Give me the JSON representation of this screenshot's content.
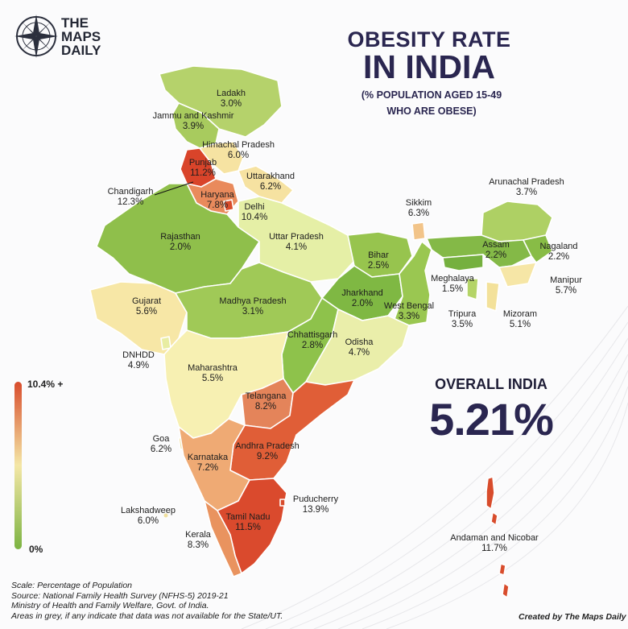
{
  "brand": {
    "line1": "THE",
    "line2": "MAPS",
    "line3": "DAILY"
  },
  "title": {
    "line1": "OBESITY RATE",
    "line2": "IN INDIA",
    "sub1": "(% POPULATION AGED 15-49",
    "sub2": "WHO ARE OBESE)"
  },
  "overall": {
    "label": "OVERALL INDIA",
    "value": "5.21%"
  },
  "legend": {
    "max_label": "10.4% +",
    "min_label": "0%",
    "color_low": "#7cb342",
    "color_mid": "#f4e7a6",
    "color_high": "#d84c2c"
  },
  "colors": {
    "title": "#2a2650",
    "outline": "#ffffff"
  },
  "regions": {
    "ladakh": {
      "name": "Ladakh",
      "value": "3.0%"
    },
    "jk": {
      "name": "Jammu and Kashmir",
      "value": "3.9%"
    },
    "hp": {
      "name": "Himachal Pradesh",
      "value": "6.0%"
    },
    "punjab": {
      "name": "Punjab",
      "value": "11.2%"
    },
    "chandigarh": {
      "name": "Chandigarh",
      "value": "12.3%"
    },
    "uttarakhand": {
      "name": "Uttarakhand",
      "value": "6.2%"
    },
    "haryana": {
      "name": "Haryana",
      "value": "7.8%"
    },
    "delhi": {
      "name": "Delhi",
      "value": "10.4%"
    },
    "rajasthan": {
      "name": "Rajasthan",
      "value": "2.0%"
    },
    "up": {
      "name": "Uttar Pradesh",
      "value": "4.1%"
    },
    "bihar": {
      "name": "Bihar",
      "value": "2.5%"
    },
    "sikkim": {
      "name": "Sikkim",
      "value": "6.3%"
    },
    "arunachal": {
      "name": "Arunachal Pradesh",
      "value": "3.7%"
    },
    "assam": {
      "name": "Assam",
      "value": "2.2%"
    },
    "nagaland": {
      "name": "Nagaland",
      "value": "2.2%"
    },
    "meghalaya": {
      "name": "Meghalaya",
      "value": "1.5%"
    },
    "manipur": {
      "name": "Manipur",
      "value": "5.7%"
    },
    "tripura": {
      "name": "Tripura",
      "value": "3.5%"
    },
    "mizoram": {
      "name": "Mizoram",
      "value": "5.1%"
    },
    "gujarat": {
      "name": "Gujarat",
      "value": "5.6%"
    },
    "mp": {
      "name": "Madhya Pradesh",
      "value": "3.1%"
    },
    "jharkhand": {
      "name": "Jharkhand",
      "value": "2.0%"
    },
    "wb": {
      "name": "West Bengal",
      "value": "3.3%"
    },
    "dnhdd": {
      "name": "DNHDD",
      "value": "4.9%"
    },
    "chhattisgarh": {
      "name": "Chhattisgarh",
      "value": "2.8%"
    },
    "odisha": {
      "name": "Odisha",
      "value": "4.7%"
    },
    "maharashtra": {
      "name": "Maharashtra",
      "value": "5.5%"
    },
    "telangana": {
      "name": "Telangana",
      "value": "8.2%"
    },
    "goa": {
      "name": "Goa",
      "value": "6.2%"
    },
    "ap": {
      "name": "Andhra Pradesh",
      "value": "9.2%"
    },
    "karnataka": {
      "name": "Karnataka",
      "value": "7.2%"
    },
    "lakshadweep": {
      "name": "Lakshadweep",
      "value": "6.0%"
    },
    "puducherry": {
      "name": "Puducherry",
      "value": "13.9%"
    },
    "tn": {
      "name": "Tamil Nadu",
      "value": "11.5%"
    },
    "kerala": {
      "name": "Kerala",
      "value": "8.3%"
    },
    "andaman": {
      "name": "Andaman and Nicobar",
      "value": "11.7%"
    }
  },
  "footer": {
    "line1": "Scale: Percentage of Population",
    "line2": "Source: National Family Health Survey (NFHS-5) 2019-21",
    "line3": "Ministry of Health and Family Welfare, Govt. of India.",
    "line4": "Areas in grey, if any indicate that data was not available for the State/UT.",
    "credit": "Created by The Maps Daily"
  }
}
